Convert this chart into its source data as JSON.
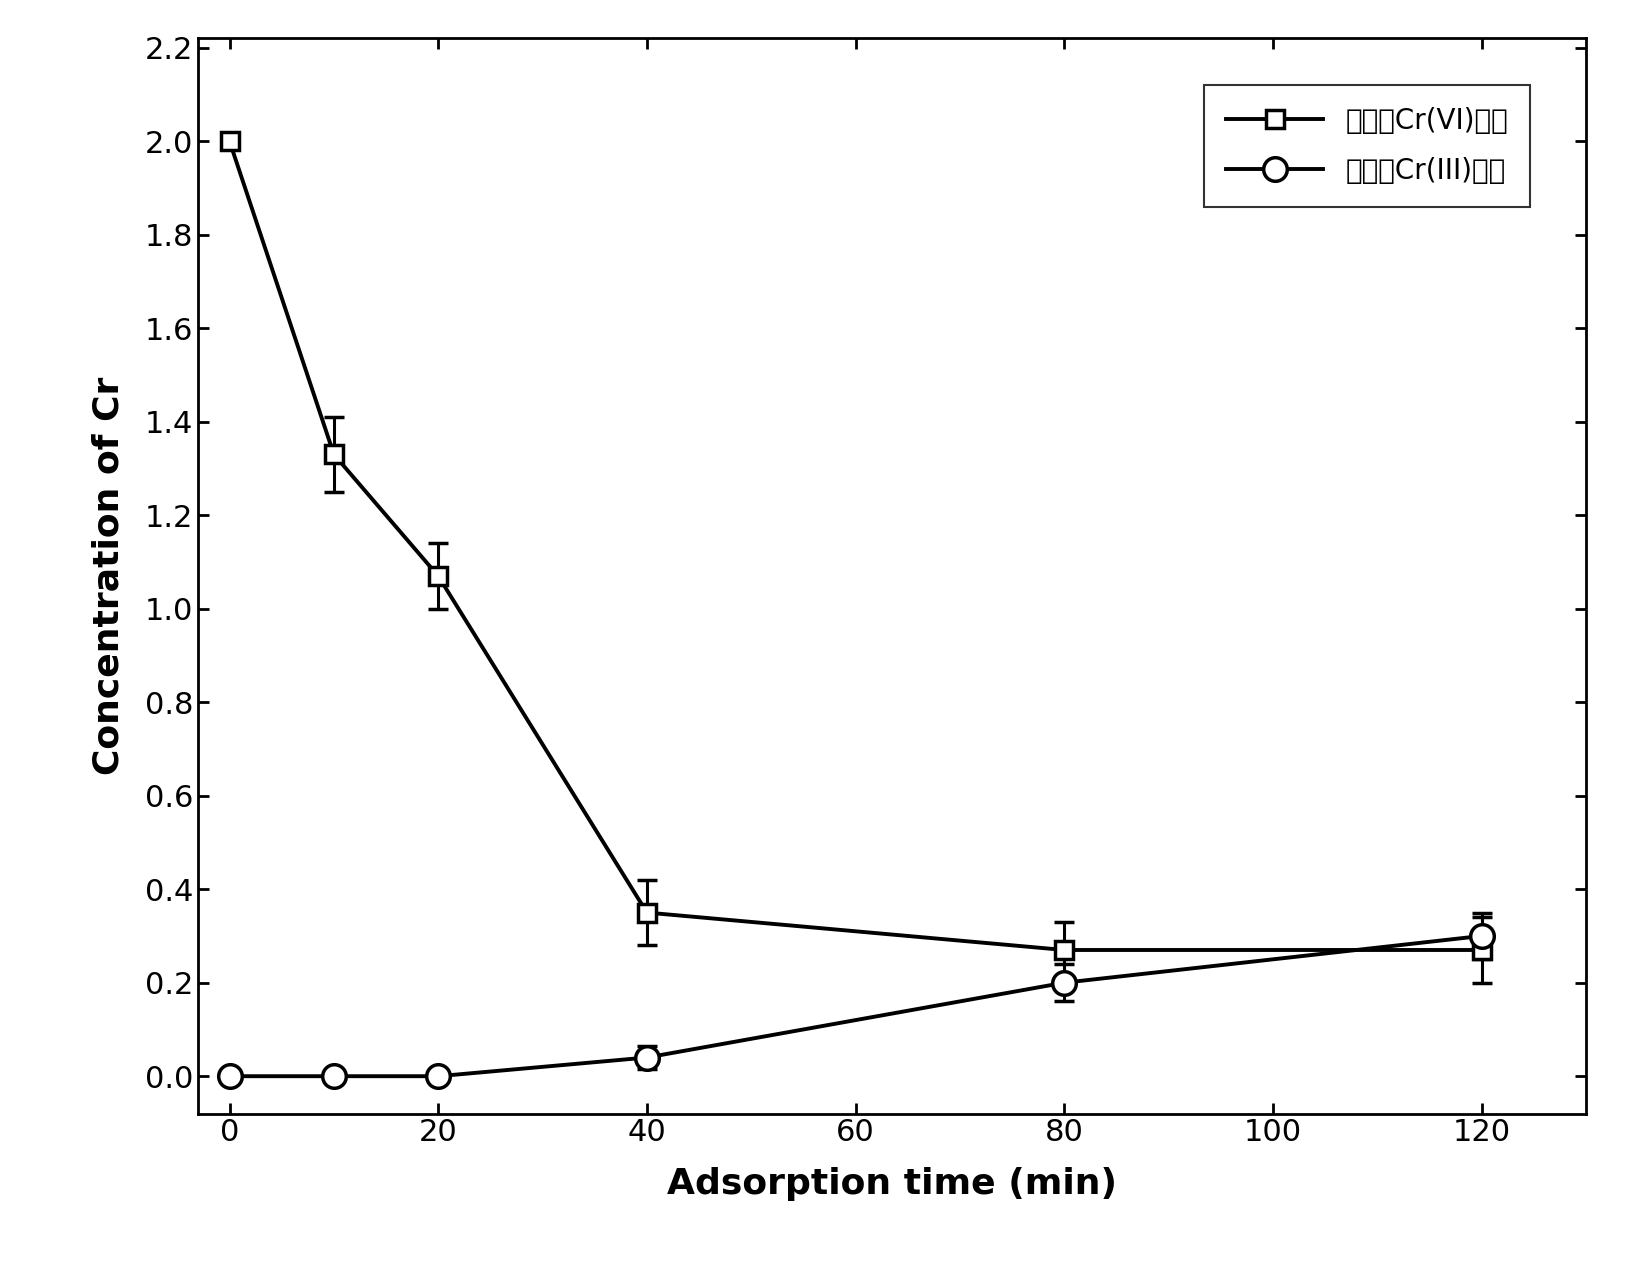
{
  "cr6_x": [
    0,
    10,
    20,
    40,
    80,
    120
  ],
  "cr6_y": [
    2.0,
    1.33,
    1.07,
    0.35,
    0.27,
    0.27
  ],
  "cr6_yerr": [
    0.0,
    0.08,
    0.07,
    0.07,
    0.06,
    0.07
  ],
  "cr3_x": [
    0,
    10,
    20,
    40,
    80,
    120
  ],
  "cr3_y": [
    0.0,
    0.0,
    0.0,
    0.04,
    0.2,
    0.3
  ],
  "cr3_yerr": [
    0.005,
    0.005,
    0.005,
    0.025,
    0.04,
    0.05
  ],
  "xlabel": "Adsorption time (min)",
  "ylabel": "Concentration of Cr",
  "legend_cr6": "溶液中Cr(VI)浓度",
  "legend_cr3": "溶液中Cr(III)浓度",
  "xlim": [
    -3,
    130
  ],
  "ylim": [
    -0.08,
    2.22
  ],
  "yticks": [
    0.0,
    0.2,
    0.4,
    0.6,
    0.8,
    1.0,
    1.2,
    1.4,
    1.6,
    1.8,
    2.0,
    2.2
  ],
  "xticks": [
    0,
    20,
    40,
    60,
    80,
    100,
    120
  ],
  "line_color": "#000000",
  "background_color": "#ffffff"
}
